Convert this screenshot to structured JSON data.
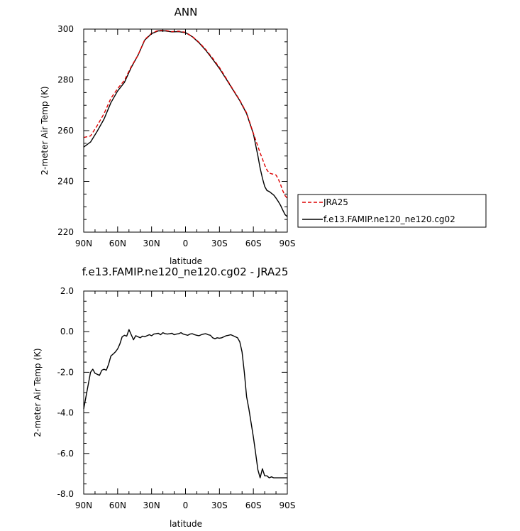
{
  "chart_data": [
    {
      "type": "line",
      "title": "ANN",
      "xlabel": "latitude",
      "ylabel": "2-meter Air Temp (K)",
      "xlim": [
        90,
        -90
      ],
      "ylim": [
        220,
        300
      ],
      "xticks": [
        "90N",
        "60N",
        "30N",
        "0",
        "30S",
        "60S",
        "90S"
      ],
      "xtick_values": [
        90,
        60,
        30,
        0,
        -30,
        -60,
        -90
      ],
      "yticks": [
        "220",
        "240",
        "260",
        "280",
        "300"
      ],
      "ytick_values": [
        220,
        240,
        260,
        280,
        300
      ],
      "legend_position": "right of plot",
      "series": [
        {
          "name": "JRA25",
          "color": "#dd0000",
          "dash": "dashed",
          "x": [
            90,
            84,
            78,
            72,
            66,
            60,
            54,
            48,
            42,
            36,
            30,
            24,
            18,
            12,
            6,
            0,
            -6,
            -12,
            -18,
            -24,
            -30,
            -36,
            -42,
            -48,
            -54,
            -60,
            -64,
            -66,
            -68,
            -70,
            -72,
            -74,
            -76,
            -78,
            -80,
            -82,
            -84,
            -86,
            -88,
            -90
          ],
          "values": [
            257.3,
            257.9,
            262.0,
            266.7,
            272.7,
            276.6,
            279.8,
            285.2,
            289.7,
            295.9,
            298.4,
            299.5,
            299.5,
            299.0,
            299.2,
            298.7,
            297.1,
            294.8,
            291.9,
            288.5,
            284.9,
            280.6,
            276.2,
            272.0,
            267.0,
            258.9,
            253.8,
            251.2,
            248.9,
            246.4,
            244.5,
            243.3,
            243.0,
            242.8,
            242.5,
            241.0,
            238.8,
            236.3,
            234.4,
            233.3
          ]
        },
        {
          "name": "f.e13.FAMIP.ne120_ne120.cg02",
          "color": "#000000",
          "dash": "solid",
          "x": [
            90,
            84,
            78,
            72,
            66,
            60,
            54,
            48,
            42,
            36,
            30,
            24,
            18,
            12,
            6,
            0,
            -6,
            -12,
            -18,
            -24,
            -30,
            -36,
            -42,
            -48,
            -54,
            -60,
            -64,
            -66,
            -68,
            -70,
            -72,
            -74,
            -76,
            -78,
            -80,
            -82,
            -84,
            -86,
            -88,
            -90
          ],
          "values": [
            253.5,
            255.5,
            259.8,
            264.6,
            271.0,
            275.6,
            279.0,
            284.9,
            289.7,
            295.7,
            298.2,
            299.3,
            299.3,
            298.9,
            299.0,
            298.6,
            297.0,
            294.6,
            291.6,
            288.1,
            284.5,
            280.3,
            276.0,
            271.8,
            266.7,
            258.7,
            250.1,
            245.2,
            241.3,
            238.0,
            236.4,
            236.0,
            235.3,
            234.6,
            233.4,
            232.1,
            230.6,
            228.7,
            226.9,
            226.1
          ]
        }
      ]
    },
    {
      "type": "line",
      "title": "f.e13.FAMIP.ne120_ne120.cg02 - JRA25",
      "xlabel": "latitude",
      "ylabel": "2-meter Air Temp (K)",
      "xlim": [
        90,
        -90
      ],
      "ylim": [
        -8.0,
        2.0
      ],
      "xticks": [
        "90N",
        "60N",
        "30N",
        "0",
        "30S",
        "60S",
        "90S"
      ],
      "xtick_values": [
        90,
        60,
        30,
        0,
        -30,
        -60,
        -90
      ],
      "yticks": [
        "-8.0",
        "-6.0",
        "-4.0",
        "-2.0",
        "0.0",
        "2.0"
      ],
      "ytick_values": [
        -8.0,
        -6.0,
        -4.0,
        -2.0,
        0.0,
        2.0
      ],
      "series": [
        {
          "color": "#000000",
          "dash": "solid",
          "x": [
            90,
            88,
            86,
            84,
            82,
            80,
            78,
            76,
            74,
            72,
            70,
            68,
            66,
            64,
            62,
            60,
            58,
            56,
            54,
            52,
            50,
            48,
            46,
            44,
            42,
            40,
            38,
            36,
            34,
            32,
            30,
            28,
            26,
            24,
            22,
            20,
            18,
            16,
            14,
            12,
            10,
            8,
            6,
            4,
            2,
            0,
            -2,
            -4,
            -6,
            -8,
            -10,
            -12,
            -14,
            -16,
            -18,
            -20,
            -22,
            -24,
            -26,
            -28,
            -30,
            -32,
            -34,
            -36,
            -38,
            -40,
            -42,
            -44,
            -46,
            -48,
            -50,
            -52,
            -54,
            -56,
            -58,
            -60,
            -62,
            -64,
            -66,
            -68,
            -70,
            -72,
            -74,
            -76,
            -78,
            -80,
            -82,
            -84,
            -86,
            -88,
            -90
          ],
          "values": [
            -3.8,
            -3.2,
            -2.6,
            -2.0,
            -1.85,
            -2.05,
            -2.1,
            -2.15,
            -1.9,
            -1.85,
            -1.9,
            -1.6,
            -1.2,
            -1.1,
            -1.0,
            -0.85,
            -0.6,
            -0.25,
            -0.18,
            -0.22,
            0.1,
            -0.15,
            -0.4,
            -0.2,
            -0.25,
            -0.3,
            -0.22,
            -0.25,
            -0.2,
            -0.15,
            -0.2,
            -0.12,
            -0.1,
            -0.08,
            -0.15,
            -0.05,
            -0.1,
            -0.12,
            -0.1,
            -0.08,
            -0.15,
            -0.12,
            -0.1,
            -0.05,
            -0.12,
            -0.15,
            -0.18,
            -0.12,
            -0.1,
            -0.15,
            -0.18,
            -0.2,
            -0.15,
            -0.12,
            -0.1,
            -0.15,
            -0.18,
            -0.3,
            -0.35,
            -0.3,
            -0.32,
            -0.3,
            -0.25,
            -0.2,
            -0.18,
            -0.15,
            -0.2,
            -0.25,
            -0.3,
            -0.5,
            -1.0,
            -2.0,
            -3.2,
            -3.8,
            -4.5,
            -5.2,
            -6.0,
            -6.8,
            -7.2,
            -6.75,
            -7.1,
            -7.1,
            -7.2,
            -7.15,
            -7.2,
            -7.2,
            -7.2,
            -7.2,
            -7.2,
            -7.2,
            -7.2
          ]
        }
      ]
    }
  ]
}
